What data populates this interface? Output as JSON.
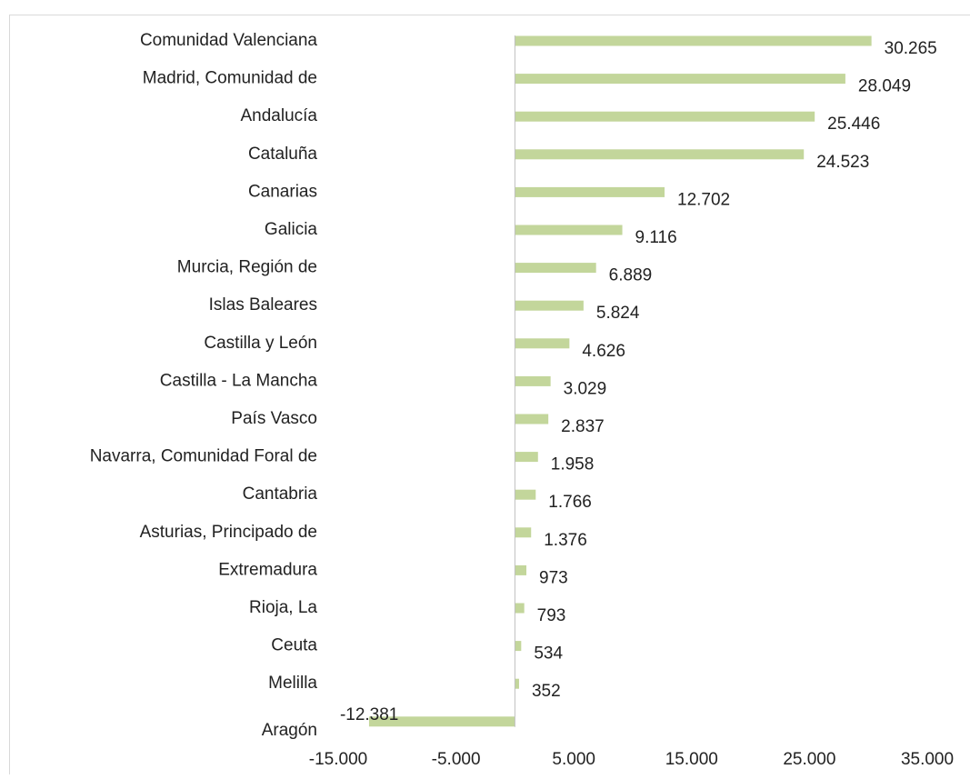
{
  "chart_data": {
    "type": "bar",
    "orientation": "horizontal",
    "categories": [
      "Comunidad Valenciana",
      "Madrid, Comunidad de",
      "Andalucía",
      "Cataluña",
      "Canarias",
      "Galicia",
      "Murcia, Región de",
      "Islas Baleares",
      "Castilla y León",
      "Castilla - La Mancha",
      "País Vasco",
      "Navarra, Comunidad Foral de",
      "Cantabria",
      "Asturias, Principado de",
      "Extremadura",
      "Rioja, La",
      "Ceuta",
      "Melilla",
      "Aragón"
    ],
    "values": [
      30265,
      28049,
      25446,
      24523,
      12702,
      9116,
      6889,
      5824,
      4626,
      3029,
      2837,
      1958,
      1766,
      1376,
      973,
      793,
      534,
      352,
      -12381
    ],
    "value_labels": [
      "30.265",
      "28.049",
      "25.446",
      "24.523",
      "12.702",
      "9.116",
      "6.889",
      "5.824",
      "4.626",
      "3.029",
      "2.837",
      "1.958",
      "1.766",
      "1.376",
      "973",
      "793",
      "534",
      "352",
      "-12.381"
    ],
    "color": "#c3d69b",
    "xlim": [
      -15000,
      35000
    ],
    "xticks": [
      {
        "value": -15000,
        "label": "-15.000"
      },
      {
        "value": -5000,
        "label": "-5.000"
      },
      {
        "value": 5000,
        "label": "5.000"
      },
      {
        "value": 15000,
        "label": "15.000"
      },
      {
        "value": 25000,
        "label": "25.000"
      },
      {
        "value": 35000,
        "label": "35.000"
      }
    ],
    "grid": false
  }
}
